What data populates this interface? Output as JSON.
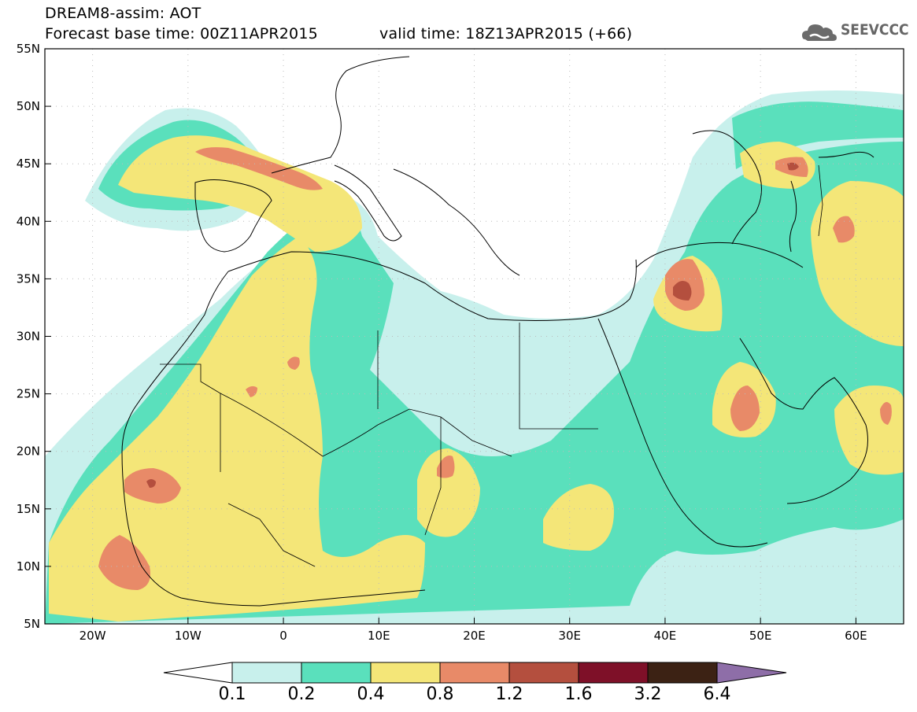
{
  "header": {
    "line1": "DREAM8-assim: AOT",
    "line2": "Forecast base time: 00Z11APR2015",
    "line3": "valid time: 18Z13APR2015 (+66)",
    "logo_text": "SEEVCCC",
    "logo_icon": "cloud-icon"
  },
  "map": {
    "projection": "lat-lon",
    "lon_range": [
      -25,
      65
    ],
    "lat_range": [
      5,
      55
    ],
    "lat_labels": [
      "55N",
      "50N",
      "45N",
      "40N",
      "35N",
      "30N",
      "25N",
      "20N",
      "15N",
      "10N",
      "5N"
    ],
    "lon_labels": [
      "20W",
      "10W",
      "0",
      "10E",
      "20E",
      "30E",
      "40E",
      "50E",
      "60E"
    ],
    "grid": "dotted",
    "field": "Aerosol optical thickness (AOT)"
  },
  "colorbar": {
    "labels": [
      "0.1",
      "0.2",
      "0.4",
      "0.8",
      "1.2",
      "1.6",
      "3.2",
      "6.4"
    ],
    "colors": [
      "#ffffff",
      "#c8f0ec",
      "#5ae0bc",
      "#f4e678",
      "#e88a68",
      "#b44f3e",
      "#7e1028",
      "#3c2214",
      "#8e6ea8"
    ]
  }
}
